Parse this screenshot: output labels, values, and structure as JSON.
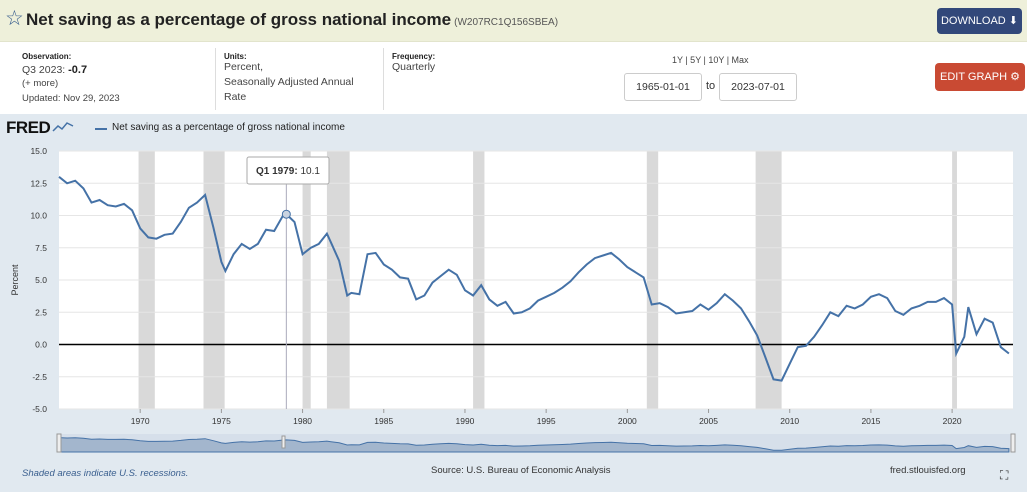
{
  "header": {
    "title": "Net saving as a percentage of gross national income",
    "series_id": "(W207RC1Q156SBEA)",
    "download_label": "DOWNLOAD ⬇"
  },
  "meta": {
    "observation_label": "Observation:",
    "observation_period": "Q3 2023:",
    "observation_value": "-0.7",
    "more_label": "(+ more)",
    "updated": "Updated: Nov 29, 2023",
    "units_label": "Units:",
    "units_value": "Percent,",
    "units_value2": "Seasonally Adjusted Annual",
    "units_value3": "Rate",
    "frequency_label": "Frequency:",
    "frequency_value": "Quarterly"
  },
  "controls": {
    "range_links": "1Y | 5Y | 10Y | Max",
    "start_date": "1965-01-01",
    "to_label": "to",
    "end_date": "2023-07-01",
    "edit_graph_label": "EDIT GRAPH ⚙"
  },
  "footer": {
    "recession_note": "Shaded areas indicate U.S. recessions.",
    "source": "Source: U.S. Bureau of Economic Analysis",
    "url": "fred.stlouisfed.org",
    "fullscreen_icon": "⛶"
  },
  "logo": {
    "text": "FRED"
  },
  "colors": {
    "line": "#4572a7",
    "recession": "#d9d9d9",
    "zero_line": "#000000"
  },
  "chart_data": {
    "type": "line",
    "title": "Net saving as a percentage of gross national income",
    "ylabel": "Percent",
    "xlabel": "",
    "xlim": [
      1965.0,
      2023.75
    ],
    "ylim": [
      -5,
      15
    ],
    "yticks": [
      -5,
      -2.5,
      0,
      2.5,
      5,
      7.5,
      10,
      12.5,
      15
    ],
    "ytick_labels": [
      "-5.0",
      "-2.5",
      "0.0",
      "2.5",
      "5.0",
      "7.5",
      "10.0",
      "12.5",
      "15.0"
    ],
    "xticks": [
      1970,
      1975,
      1980,
      1985,
      1990,
      1995,
      2000,
      2005,
      2010,
      2015,
      2020
    ],
    "recessions": [
      [
        1969.9,
        1970.9
      ],
      [
        1973.9,
        1975.2
      ],
      [
        1980.0,
        1980.5
      ],
      [
        1981.5,
        1982.9
      ],
      [
        1990.5,
        1991.2
      ],
      [
        2001.2,
        2001.9
      ],
      [
        2007.9,
        2009.5
      ],
      [
        2020.0,
        2020.3
      ]
    ],
    "tooltip": {
      "date": "Q1 1979:",
      "value": "10.1",
      "x": 1979.0,
      "y": 10.1
    },
    "series": [
      {
        "name": "Net saving as a percentage of gross national income",
        "x": [
          1965.0,
          1965.5,
          1966.0,
          1966.5,
          1967.0,
          1967.5,
          1968.0,
          1968.5,
          1969.0,
          1969.5,
          1970.0,
          1970.5,
          1971.0,
          1971.5,
          1972.0,
          1972.5,
          1973.0,
          1973.5,
          1974.0,
          1974.5,
          1975.0,
          1975.25,
          1975.75,
          1976.25,
          1976.75,
          1977.25,
          1977.75,
          1978.25,
          1978.75,
          1979.0,
          1979.5,
          1980.0,
          1980.5,
          1981.0,
          1981.5,
          1981.75,
          1982.25,
          1982.75,
          1983.0,
          1983.5,
          1984.0,
          1984.5,
          1985.0,
          1985.5,
          1986.0,
          1986.5,
          1987.0,
          1987.5,
          1988.0,
          1988.5,
          1989.0,
          1989.5,
          1990.0,
          1990.5,
          1991.0,
          1991.5,
          1992.0,
          1992.5,
          1993.0,
          1993.5,
          1994.0,
          1994.5,
          1995.0,
          1995.5,
          1996.0,
          1996.5,
          1997.0,
          1997.5,
          1998.0,
          1998.5,
          1999.0,
          1999.5,
          2000.0,
          2000.5,
          2001.0,
          2001.5,
          2002.0,
          2002.5,
          2003.0,
          2003.5,
          2004.0,
          2004.5,
          2005.0,
          2005.5,
          2006.0,
          2006.5,
          2007.0,
          2007.5,
          2008.0,
          2008.5,
          2009.0,
          2009.5,
          2010.0,
          2010.5,
          2011.0,
          2011.5,
          2012.0,
          2012.5,
          2013.0,
          2013.5,
          2014.0,
          2014.5,
          2015.0,
          2015.5,
          2016.0,
          2016.5,
          2017.0,
          2017.5,
          2018.0,
          2018.5,
          2019.0,
          2019.5,
          2020.0,
          2020.25,
          2020.75,
          2021.0,
          2021.5,
          2022.0,
          2022.5,
          2023.0,
          2023.5
        ],
        "values": [
          13.0,
          12.5,
          12.7,
          12.1,
          11.0,
          11.2,
          10.8,
          10.7,
          10.9,
          10.4,
          9.0,
          8.3,
          8.2,
          8.5,
          8.6,
          9.5,
          10.6,
          11.0,
          11.6,
          9.1,
          6.4,
          5.7,
          7.0,
          7.8,
          7.4,
          7.8,
          8.9,
          8.8,
          9.9,
          10.1,
          9.5,
          7.0,
          7.5,
          7.8,
          8.6,
          7.9,
          6.5,
          3.8,
          4.0,
          3.9,
          7.0,
          7.1,
          6.2,
          5.8,
          5.2,
          5.1,
          3.5,
          3.8,
          4.8,
          5.3,
          5.8,
          5.4,
          4.2,
          3.8,
          4.6,
          3.5,
          3.0,
          3.3,
          2.4,
          2.5,
          2.8,
          3.4,
          3.7,
          4.0,
          4.4,
          4.9,
          5.6,
          6.2,
          6.7,
          6.9,
          7.1,
          6.6,
          6.0,
          5.6,
          5.2,
          3.1,
          3.2,
          2.9,
          2.4,
          2.5,
          2.6,
          3.1,
          2.7,
          3.2,
          3.9,
          3.4,
          2.8,
          1.8,
          0.7,
          -1.0,
          -2.7,
          -2.8,
          -1.5,
          -0.2,
          -0.1,
          0.6,
          1.5,
          2.5,
          2.2,
          3.0,
          2.8,
          3.1,
          3.7,
          3.9,
          3.6,
          2.6,
          2.3,
          2.8,
          3.0,
          3.3,
          3.3,
          3.6,
          3.1,
          -0.7,
          0.6,
          2.9,
          0.8,
          2.0,
          1.7,
          -0.2,
          -0.7
        ]
      }
    ]
  }
}
